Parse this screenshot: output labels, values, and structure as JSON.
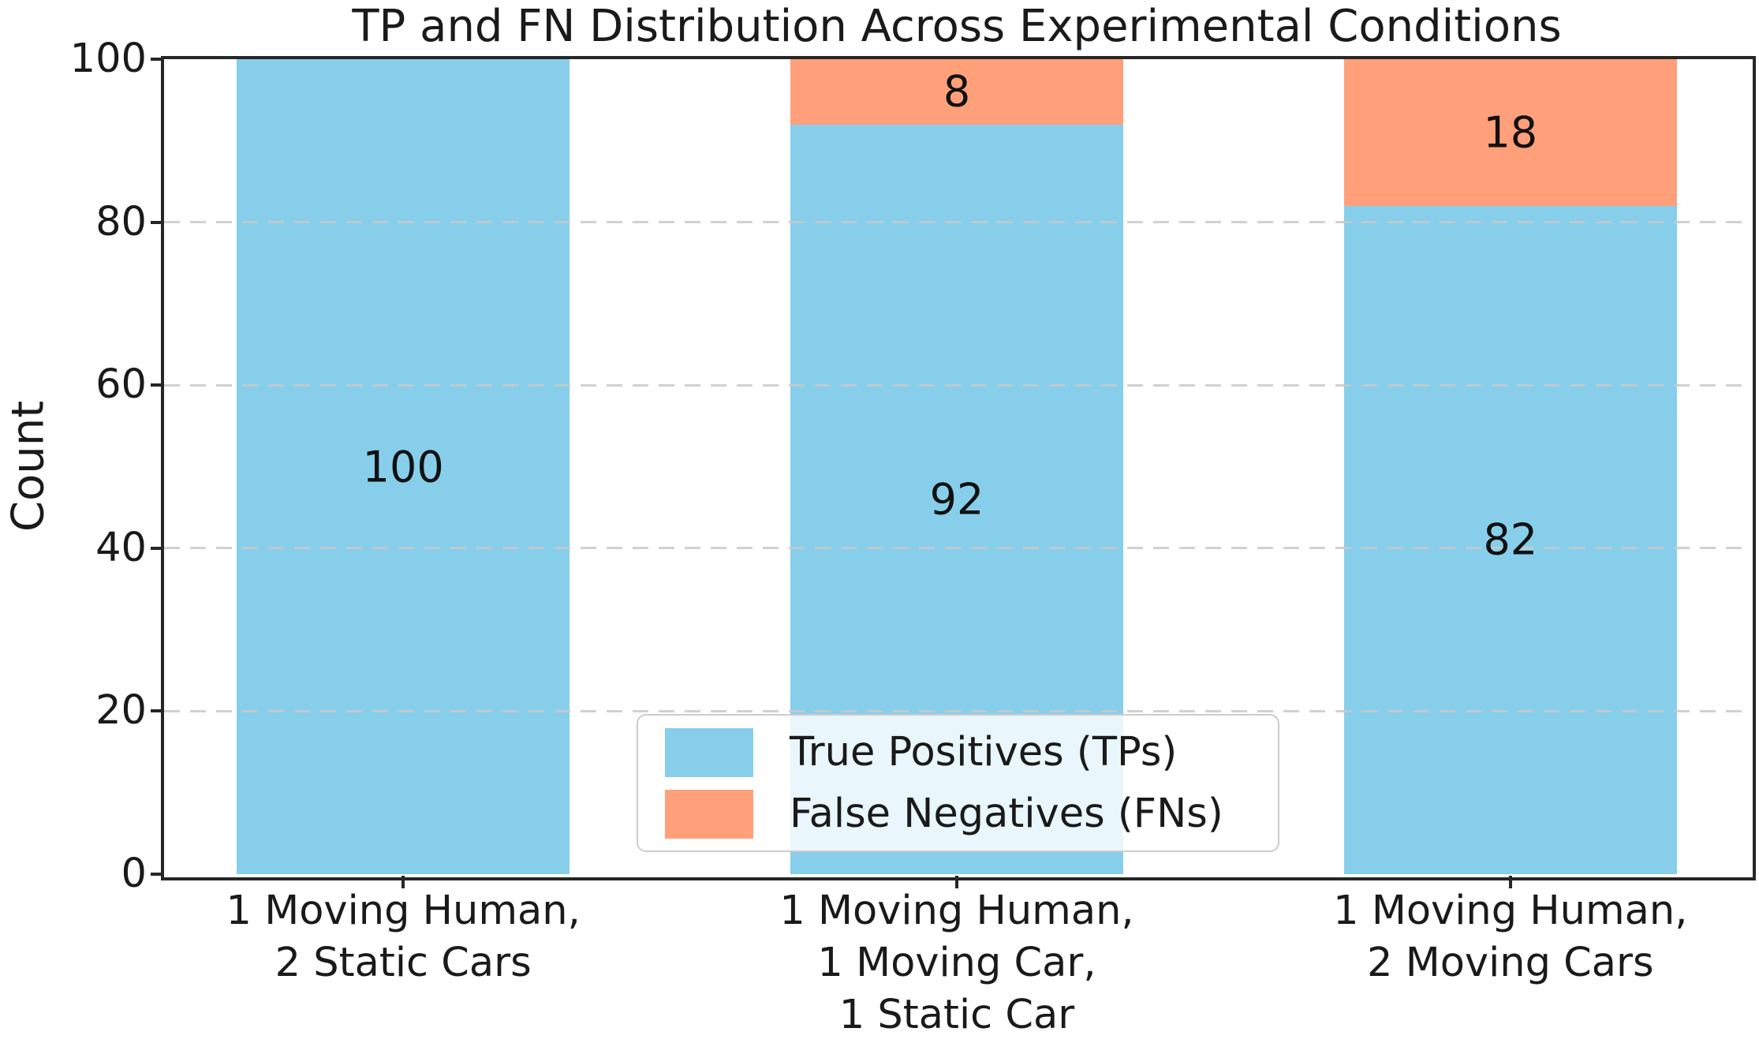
{
  "chart_data": {
    "type": "bar",
    "stacked": true,
    "title": "TP and FN Distribution Across Experimental Conditions",
    "xlabel": "",
    "ylabel": "Count",
    "categories": [
      [
        "1 Moving Human,",
        "2 Static Cars"
      ],
      [
        "1 Moving Human,",
        "1 Moving Car,",
        "1 Static Car"
      ],
      [
        "1 Moving Human,",
        "2 Moving Cars"
      ]
    ],
    "series": [
      {
        "name": "True Positives (TPs)",
        "color": "#87CEEB",
        "values": [
          100,
          92,
          82
        ]
      },
      {
        "name": "False Negatives (FNs)",
        "color": "#FFA07A",
        "values": [
          0,
          8,
          18
        ]
      }
    ],
    "bar_value_labels_shown": [
      100,
      92,
      82,
      8,
      18
    ],
    "ylim": [
      0,
      100
    ],
    "yticks": [
      0,
      20,
      40,
      60,
      80,
      100
    ],
    "xlim": [
      -0.432,
      2.432
    ],
    "bar_width_units": 0.602,
    "grid": {
      "axis": "y",
      "linestyle": "dashed",
      "color": "#c9c9c9",
      "on": true
    },
    "legend": {
      "position": "inside-lower-center",
      "frame": true,
      "framealpha": 0.82
    },
    "colors": {
      "background": "#ffffff",
      "spine": "#262626",
      "text": "#1a1a1a",
      "grid": "#c9c9c9"
    }
  }
}
